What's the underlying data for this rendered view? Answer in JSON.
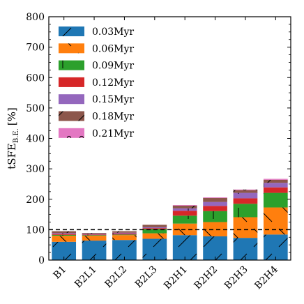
{
  "chart_data": {
    "type": "bar",
    "stacked": true,
    "categories": [
      "B1",
      "B2L1",
      "B2L2",
      "B2L3",
      "B2H1",
      "B2H2",
      "B2H3",
      "B2H4"
    ],
    "ylabel_main": "tSFE",
    "ylabel_sub": "B.E.",
    "ylabel_unit": "[%]",
    "ylim": [
      0,
      800
    ],
    "yticks": [
      0,
      100,
      200,
      300,
      400,
      500,
      600,
      700,
      800
    ],
    "reference_line": 100,
    "legend_position": "top-left",
    "series": [
      {
        "name": "0.03Myr",
        "color": "#1f77b4",
        "hatch": "slash",
        "values": [
          60,
          64,
          66,
          70,
          82,
          78,
          73,
          84
        ]
      },
      {
        "name": "0.06Myr",
        "color": "#ff7f0e",
        "hatch": "backslash",
        "values": [
          20,
          16,
          16,
          18,
          38,
          47,
          68,
          89
        ]
      },
      {
        "name": "0.09Myr",
        "color": "#2ca02c",
        "hatch": "vertical",
        "values": [
          3,
          2,
          2,
          14,
          26,
          36,
          44,
          48
        ]
      },
      {
        "name": "0.12Myr",
        "color": "#d62728",
        "hatch": "none",
        "values": [
          3,
          2,
          3,
          3,
          16,
          17,
          18,
          18
        ]
      },
      {
        "name": "0.15Myr",
        "color": "#9467bd",
        "hatch": "plus",
        "values": [
          3,
          2,
          3,
          3,
          8,
          13,
          18,
          15
        ]
      },
      {
        "name": "0.18Myr",
        "color": "#8c564b",
        "hatch": "slash",
        "values": [
          6,
          3,
          5,
          8,
          9,
          13,
          9,
          10
        ]
      },
      {
        "name": "0.21Myr",
        "color": "#e377c2",
        "hatch": "circle",
        "values": [
          0,
          0,
          0,
          0,
          2,
          2,
          2,
          3
        ]
      }
    ]
  }
}
